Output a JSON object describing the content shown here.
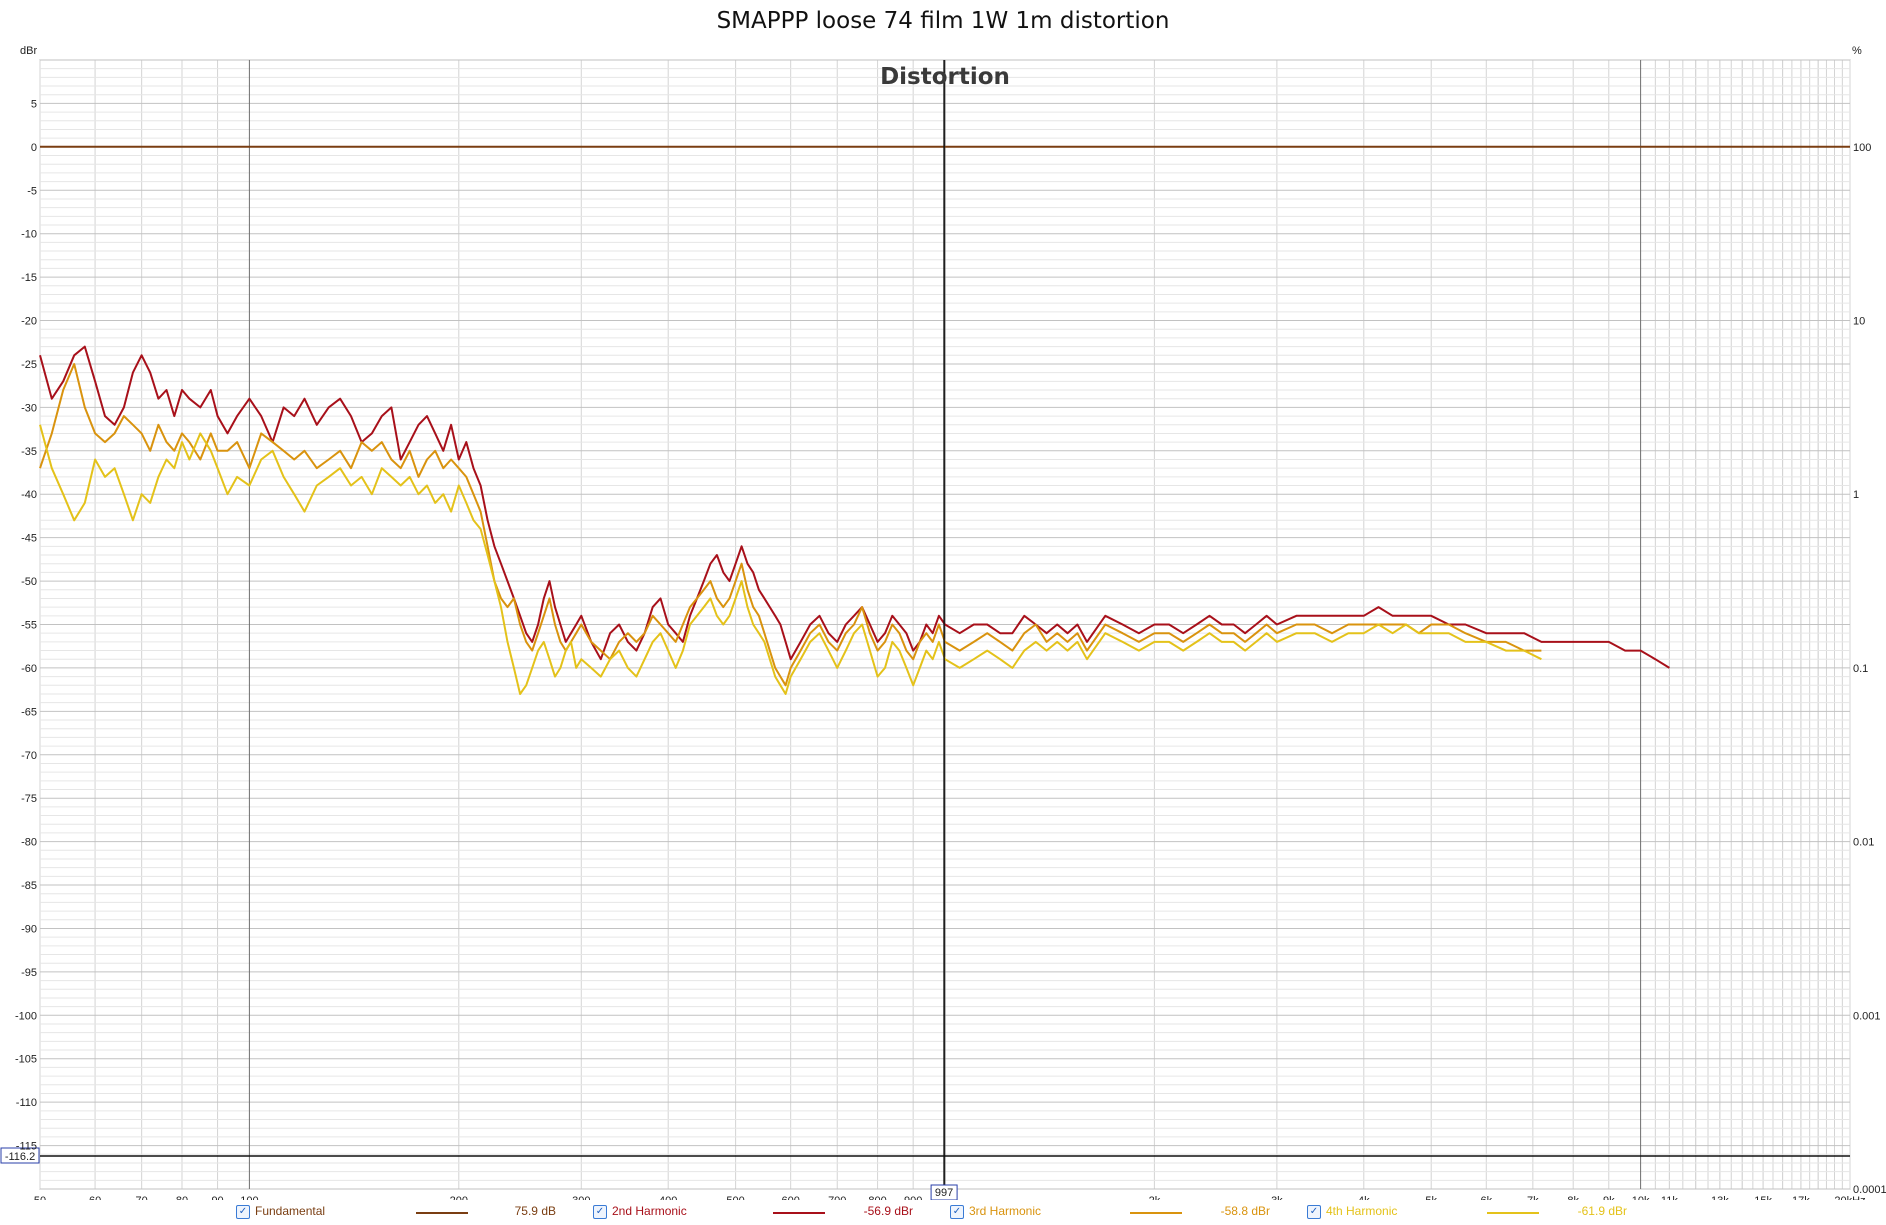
{
  "page_title": "SMAPPP loose 74 film 1W 1m distortion",
  "colors": {
    "fundamental": "#7a3e12",
    "h2": "#a8101a",
    "h3": "#d9930e",
    "h4": "#e4c21a",
    "major_grid": "#6e6e6e",
    "minor_grid": "#d4d4d4",
    "cursor": "#111111"
  },
  "chart_data": {
    "type": "line",
    "title": "Distortion",
    "left_axis_unit": "dBr",
    "right_axis_unit": "%",
    "x_unit": "kHz",
    "x_scale": "log",
    "xlim": [
      50,
      20000
    ],
    "ylim": [
      -120,
      10
    ],
    "grid": true,
    "legend_position": "bottom",
    "x_tick_labels": [
      {
        "v": 50,
        "t": "50"
      },
      {
        "v": 60,
        "t": "60"
      },
      {
        "v": 70,
        "t": "70"
      },
      {
        "v": 80,
        "t": "80"
      },
      {
        "v": 90,
        "t": "90"
      },
      {
        "v": 100,
        "t": "100"
      },
      {
        "v": 200,
        "t": "200"
      },
      {
        "v": 300,
        "t": "300"
      },
      {
        "v": 400,
        "t": "400"
      },
      {
        "v": 500,
        "t": "500"
      },
      {
        "v": 600,
        "t": "600"
      },
      {
        "v": 700,
        "t": "700"
      },
      {
        "v": 800,
        "t": "800"
      },
      {
        "v": 900,
        "t": "900"
      },
      {
        "v": 2000,
        "t": "2k"
      },
      {
        "v": 3000,
        "t": "3k"
      },
      {
        "v": 4000,
        "t": "4k"
      },
      {
        "v": 5000,
        "t": "5k"
      },
      {
        "v": 6000,
        "t": "6k"
      },
      {
        "v": 7000,
        "t": "7k"
      },
      {
        "v": 8000,
        "t": "8k"
      },
      {
        "v": 9000,
        "t": "9k"
      },
      {
        "v": 10000,
        "t": "10k"
      },
      {
        "v": 11000,
        "t": "11k"
      },
      {
        "v": 13000,
        "t": "13k"
      },
      {
        "v": 15000,
        "t": "15k"
      },
      {
        "v": 17000,
        "t": "17k"
      },
      {
        "v": 20000,
        "t": "20kHz"
      }
    ],
    "y_tick_labels": [
      {
        "v": 5,
        "t": "5"
      },
      {
        "v": 0,
        "t": "0"
      },
      {
        "v": -5,
        "t": "-5"
      },
      {
        "v": -10,
        "t": "-10"
      },
      {
        "v": -15,
        "t": "-15"
      },
      {
        "v": -20,
        "t": "-20"
      },
      {
        "v": -25,
        "t": "-25"
      },
      {
        "v": -30,
        "t": "-30"
      },
      {
        "v": -35,
        "t": "-35"
      },
      {
        "v": -40,
        "t": "-40"
      },
      {
        "v": -45,
        "t": "-45"
      },
      {
        "v": -50,
        "t": "-50"
      },
      {
        "v": -55,
        "t": "-55"
      },
      {
        "v": -60,
        "t": "-60"
      },
      {
        "v": -65,
        "t": "-65"
      },
      {
        "v": -70,
        "t": "-70"
      },
      {
        "v": -75,
        "t": "-75"
      },
      {
        "v": -80,
        "t": "-80"
      },
      {
        "v": -85,
        "t": "-85"
      },
      {
        "v": -90,
        "t": "-90"
      },
      {
        "v": -95,
        "t": "-95"
      },
      {
        "v": -100,
        "t": "-100"
      },
      {
        "v": -105,
        "t": "-105"
      },
      {
        "v": -110,
        "t": "-110"
      },
      {
        "v": -115,
        "t": "-115"
      }
    ],
    "right_tick_labels": [
      {
        "v": 0,
        "t": "100"
      },
      {
        "v": -20,
        "t": "10"
      },
      {
        "v": -40,
        "t": "1"
      },
      {
        "v": -60,
        "t": "0.1"
      },
      {
        "v": -80,
        "t": "0.01"
      },
      {
        "v": -100,
        "t": "0.001"
      },
      {
        "v": -120,
        "t": "0.0001"
      }
    ],
    "x_cursor": {
      "value": 997,
      "label": "997"
    },
    "y_cursor": {
      "value": -116.2,
      "label": "-116.2"
    },
    "series": [
      {
        "name": "Fundamental",
        "value_label": "75.9 dB",
        "color": "#7a3e12",
        "x": [
          50,
          20000
        ],
        "y": [
          0,
          0
        ]
      },
      {
        "name": "2nd Harmonic",
        "value_label": "-56.9 dBr",
        "color": "#a8101a",
        "x": [
          50,
          52,
          54,
          56,
          58,
          60,
          62,
          64,
          66,
          68,
          70,
          72,
          74,
          76,
          78,
          80,
          82,
          85,
          88,
          90,
          93,
          96,
          100,
          104,
          108,
          112,
          116,
          120,
          125,
          130,
          135,
          140,
          145,
          150,
          155,
          160,
          165,
          170,
          175,
          180,
          185,
          190,
          195,
          200,
          205,
          210,
          215,
          220,
          225,
          230,
          235,
          240,
          245,
          250,
          255,
          260,
          265,
          270,
          275,
          280,
          285,
          290,
          295,
          300,
          310,
          320,
          330,
          340,
          350,
          360,
          370,
          380,
          390,
          400,
          410,
          420,
          430,
          440,
          450,
          460,
          470,
          480,
          490,
          500,
          510,
          520,
          530,
          540,
          550,
          560,
          570,
          580,
          590,
          600,
          620,
          640,
          660,
          680,
          700,
          720,
          740,
          760,
          780,
          800,
          820,
          840,
          860,
          880,
          900,
          920,
          940,
          960,
          980,
          1000,
          1050,
          1100,
          1150,
          1200,
          1250,
          1300,
          1350,
          1400,
          1450,
          1500,
          1550,
          1600,
          1700,
          1800,
          1900,
          2000,
          2100,
          2200,
          2300,
          2400,
          2500,
          2600,
          2700,
          2800,
          2900,
          3000,
          3200,
          3400,
          3600,
          3800,
          4000,
          4200,
          4400,
          4600,
          4800,
          5000,
          5300,
          5600,
          6000,
          6400,
          6800,
          7200,
          7600,
          8000,
          8500,
          9000,
          9500,
          10000,
          10500,
          11000
        ],
        "y": [
          -24,
          -29,
          -27,
          -24,
          -23,
          -27,
          -31,
          -32,
          -30,
          -26,
          -24,
          -26,
          -29,
          -28,
          -31,
          -28,
          -29,
          -30,
          -28,
          -31,
          -33,
          -31,
          -29,
          -31,
          -34,
          -30,
          -31,
          -29,
          -32,
          -30,
          -29,
          -31,
          -34,
          -33,
          -31,
          -30,
          -36,
          -34,
          -32,
          -31,
          -33,
          -35,
          -32,
          -36,
          -34,
          -37,
          -39,
          -43,
          -46,
          -48,
          -50,
          -52,
          -54,
          -56,
          -57,
          -55,
          -52,
          -50,
          -53,
          -55,
          -57,
          -56,
          -55,
          -54,
          -57,
          -59,
          -56,
          -55,
          -57,
          -58,
          -56,
          -53,
          -52,
          -55,
          -56,
          -57,
          -54,
          -52,
          -50,
          -48,
          -47,
          -49,
          -50,
          -48,
          -46,
          -48,
          -49,
          -51,
          -52,
          -53,
          -54,
          -55,
          -57,
          -59,
          -57,
          -55,
          -54,
          -56,
          -57,
          -55,
          -54,
          -53,
          -55,
          -57,
          -56,
          -54,
          -55,
          -56,
          -58,
          -57,
          -55,
          -56,
          -54,
          -55,
          -56,
          -55,
          -55,
          -56,
          -56,
          -54,
          -55,
          -56,
          -55,
          -56,
          -55,
          -57,
          -54,
          -55,
          -56,
          -55,
          -55,
          -56,
          -55,
          -54,
          -55,
          -55,
          -56,
          -55,
          -54,
          -55,
          -54,
          -54,
          -54,
          -54,
          -54,
          -53,
          -54,
          -54,
          -54,
          -54,
          -55,
          -55,
          -56,
          -56,
          -56,
          -57,
          -57,
          -57,
          -57,
          -57,
          -58,
          -58,
          -59,
          -60
        ]
      },
      {
        "name": "3rd Harmonic",
        "value_label": "-58.8 dBr",
        "color": "#d9930e",
        "x": [
          50,
          52,
          54,
          56,
          58,
          60,
          62,
          64,
          66,
          68,
          70,
          72,
          74,
          76,
          78,
          80,
          82,
          85,
          88,
          90,
          93,
          96,
          100,
          104,
          108,
          112,
          116,
          120,
          125,
          130,
          135,
          140,
          145,
          150,
          155,
          160,
          165,
          170,
          175,
          180,
          185,
          190,
          195,
          200,
          205,
          210,
          215,
          220,
          225,
          230,
          235,
          240,
          245,
          250,
          255,
          260,
          265,
          270,
          275,
          280,
          285,
          290,
          295,
          300,
          310,
          320,
          330,
          340,
          350,
          360,
          370,
          380,
          390,
          400,
          410,
          420,
          430,
          440,
          450,
          460,
          470,
          480,
          490,
          500,
          510,
          520,
          530,
          540,
          550,
          560,
          570,
          580,
          590,
          600,
          620,
          640,
          660,
          680,
          700,
          720,
          740,
          760,
          780,
          800,
          820,
          840,
          860,
          880,
          900,
          920,
          940,
          960,
          980,
          1000,
          1050,
          1100,
          1150,
          1200,
          1250,
          1300,
          1350,
          1400,
          1450,
          1500,
          1550,
          1600,
          1700,
          1800,
          1900,
          2000,
          2100,
          2200,
          2300,
          2400,
          2500,
          2600,
          2700,
          2800,
          2900,
          3000,
          3200,
          3400,
          3600,
          3800,
          4000,
          4200,
          4400,
          4600,
          4800,
          5000,
          5300,
          5600,
          6000,
          6400,
          6800,
          7200
        ],
        "y": [
          -37,
          -33,
          -28,
          -25,
          -30,
          -33,
          -34,
          -33,
          -31,
          -32,
          -33,
          -35,
          -32,
          -34,
          -35,
          -33,
          -34,
          -36,
          -33,
          -35,
          -35,
          -34,
          -37,
          -33,
          -34,
          -35,
          -36,
          -35,
          -37,
          -36,
          -35,
          -37,
          -34,
          -35,
          -34,
          -36,
          -37,
          -35,
          -38,
          -36,
          -35,
          -37,
          -36,
          -37,
          -38,
          -40,
          -42,
          -46,
          -50,
          -52,
          -53,
          -52,
          -55,
          -57,
          -58,
          -56,
          -54,
          -52,
          -55,
          -57,
          -58,
          -57,
          -56,
          -55,
          -57,
          -58,
          -59,
          -57,
          -56,
          -57,
          -56,
          -54,
          -55,
          -56,
          -57,
          -55,
          -53,
          -52,
          -51,
          -50,
          -52,
          -53,
          -52,
          -50,
          -48,
          -51,
          -53,
          -54,
          -56,
          -58,
          -60,
          -61,
          -62,
          -60,
          -58,
          -56,
          -55,
          -57,
          -58,
          -56,
          -55,
          -53,
          -56,
          -58,
          -57,
          -55,
          -56,
          -58,
          -59,
          -57,
          -56,
          -57,
          -55,
          -57,
          -58,
          -57,
          -56,
          -57,
          -58,
          -56,
          -55,
          -57,
          -56,
          -57,
          -56,
          -58,
          -55,
          -56,
          -57,
          -56,
          -56,
          -57,
          -56,
          -55,
          -56,
          -56,
          -57,
          -56,
          -55,
          -56,
          -55,
          -55,
          -56,
          -55,
          -55,
          -55,
          -55,
          -55,
          -56,
          -55,
          -55,
          -56,
          -57,
          -57,
          -58,
          -58
        ]
      },
      {
        "name": "4th Harmonic",
        "value_label": "-61.9 dBr",
        "color": "#e4c21a",
        "x": [
          50,
          52,
          54,
          56,
          58,
          60,
          62,
          64,
          66,
          68,
          70,
          72,
          74,
          76,
          78,
          80,
          82,
          85,
          88,
          90,
          93,
          96,
          100,
          104,
          108,
          112,
          116,
          120,
          125,
          130,
          135,
          140,
          145,
          150,
          155,
          160,
          165,
          170,
          175,
          180,
          185,
          190,
          195,
          200,
          205,
          210,
          215,
          220,
          225,
          230,
          235,
          240,
          245,
          250,
          255,
          260,
          265,
          270,
          275,
          280,
          285,
          290,
          295,
          300,
          310,
          320,
          330,
          340,
          350,
          360,
          370,
          380,
          390,
          400,
          410,
          420,
          430,
          440,
          450,
          460,
          470,
          480,
          490,
          500,
          510,
          520,
          530,
          540,
          550,
          560,
          570,
          580,
          590,
          600,
          620,
          640,
          660,
          680,
          700,
          720,
          740,
          760,
          780,
          800,
          820,
          840,
          860,
          880,
          900,
          920,
          940,
          960,
          980,
          1000,
          1050,
          1100,
          1150,
          1200,
          1250,
          1300,
          1350,
          1400,
          1450,
          1500,
          1550,
          1600,
          1700,
          1800,
          1900,
          2000,
          2100,
          2200,
          2300,
          2400,
          2500,
          2600,
          2700,
          2800,
          2900,
          3000,
          3200,
          3400,
          3600,
          3800,
          4000,
          4200,
          4400,
          4600,
          4800,
          5000,
          5300,
          5600,
          6000,
          6400,
          6800,
          7200
        ],
        "y": [
          -32,
          -37,
          -40,
          -43,
          -41,
          -36,
          -38,
          -37,
          -40,
          -43,
          -40,
          -41,
          -38,
          -36,
          -37,
          -34,
          -36,
          -33,
          -35,
          -37,
          -40,
          -38,
          -39,
          -36,
          -35,
          -38,
          -40,
          -42,
          -39,
          -38,
          -37,
          -39,
          -38,
          -40,
          -37,
          -38,
          -39,
          -38,
          -40,
          -39,
          -41,
          -40,
          -42,
          -39,
          -41,
          -43,
          -44,
          -47,
          -50,
          -53,
          -57,
          -60,
          -63,
          -62,
          -60,
          -58,
          -57,
          -59,
          -61,
          -60,
          -58,
          -57,
          -60,
          -59,
          -60,
          -61,
          -59,
          -58,
          -60,
          -61,
          -59,
          -57,
          -56,
          -58,
          -60,
          -58,
          -55,
          -54,
          -53,
          -52,
          -54,
          -55,
          -54,
          -52,
          -50,
          -53,
          -55,
          -56,
          -57,
          -59,
          -61,
          -62,
          -63,
          -61,
          -59,
          -57,
          -56,
          -58,
          -60,
          -58,
          -56,
          -55,
          -58,
          -61,
          -60,
          -57,
          -58,
          -60,
          -62,
          -60,
          -58,
          -59,
          -57,
          -59,
          -60,
          -59,
          -58,
          -59,
          -60,
          -58,
          -57,
          -58,
          -57,
          -58,
          -57,
          -59,
          -56,
          -57,
          -58,
          -57,
          -57,
          -58,
          -57,
          -56,
          -57,
          -57,
          -58,
          -57,
          -56,
          -57,
          -56,
          -56,
          -57,
          -56,
          -56,
          -55,
          -56,
          -55,
          -56,
          -56,
          -56,
          -57,
          -57,
          -58,
          -58,
          -59
        ]
      }
    ]
  },
  "legend": [
    {
      "label": "Fundamental",
      "value": "75.9 dB",
      "color": "#7a3e12",
      "checked": "✓"
    },
    {
      "label": "2nd Harmonic",
      "value": "-56.9 dBr",
      "color": "#a8101a",
      "checked": "✓"
    },
    {
      "label": "3rd Harmonic",
      "value": "-58.8 dBr",
      "color": "#d9930e",
      "checked": "✓"
    },
    {
      "label": "4th Harmonic",
      "value": "-61.9 dBr",
      "color": "#e4c21a",
      "checked": "✓"
    }
  ]
}
